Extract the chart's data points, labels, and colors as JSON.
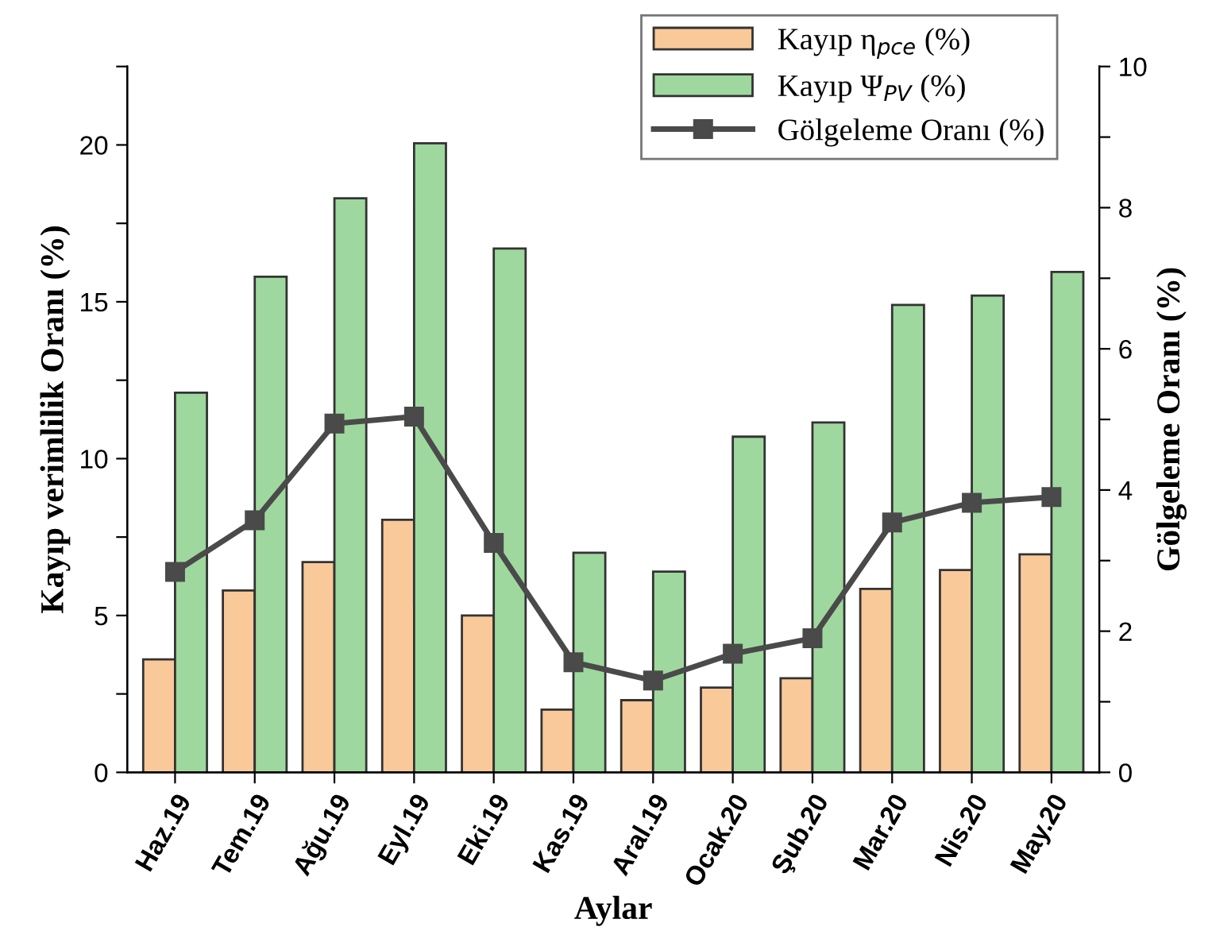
{
  "chart_data": {
    "type": "bar",
    "categories": [
      "Haz.19",
      "Tem.19",
      "Ağu.19",
      "Eyl.19",
      "Eki.19",
      "Kas.19",
      "Aral.19",
      "Ocak.20",
      "Şub.20",
      "Mar.20",
      "Nis.20",
      "May.20"
    ],
    "series": [
      {
        "name": "Kayıp η$_{pce}$ (%)",
        "color": "#f9c999",
        "values": [
          3.6,
          5.8,
          6.7,
          8.05,
          5.0,
          2.0,
          2.3,
          2.7,
          3.0,
          5.85,
          6.45,
          6.95
        ]
      },
      {
        "name": "Kayıp Ψ$_{PV}$ (%)",
        "color": "#9fd89e",
        "values": [
          12.1,
          15.8,
          18.3,
          20.05,
          16.7,
          7.0,
          6.4,
          10.7,
          11.15,
          14.9,
          15.2,
          15.95
        ]
      },
      {
        "name": "Gölgeleme Oranı (%)",
        "type": "line",
        "axis": "y2",
        "color": "#4a4a4a",
        "marker": "square",
        "line_style": "solid",
        "values": [
          2.84,
          3.57,
          4.94,
          5.04,
          3.25,
          1.56,
          1.3,
          1.68,
          1.9,
          3.54,
          3.82,
          3.9
        ]
      }
    ],
    "xlabel": "Aylar",
    "ylabel": "Kayıp verimlilik Oranı (%)",
    "y2label": "Gölgeleme Oranı (%)",
    "ylim": [
      0,
      22.5
    ],
    "yticks": [
      0,
      {
        "value": 2.5,
        "label": null
      },
      5,
      {
        "value": 7.5,
        "label": null
      },
      10,
      {
        "value": 12.5,
        "label": null
      },
      15,
      {
        "value": 17.5,
        "label": null
      },
      20,
      {
        "value": 22.5,
        "label": null
      }
    ],
    "y2lim": [
      0,
      10
    ],
    "y2ticks": [
      0,
      {
        "value": 1,
        "label": null
      },
      2,
      {
        "value": 3,
        "label": null
      },
      4,
      {
        "value": 5,
        "label": null
      },
      6,
      {
        "value": 7,
        "label": null
      },
      8,
      {
        "value": 9,
        "label": null
      },
      10
    ],
    "grid": false,
    "legend": "top right"
  }
}
